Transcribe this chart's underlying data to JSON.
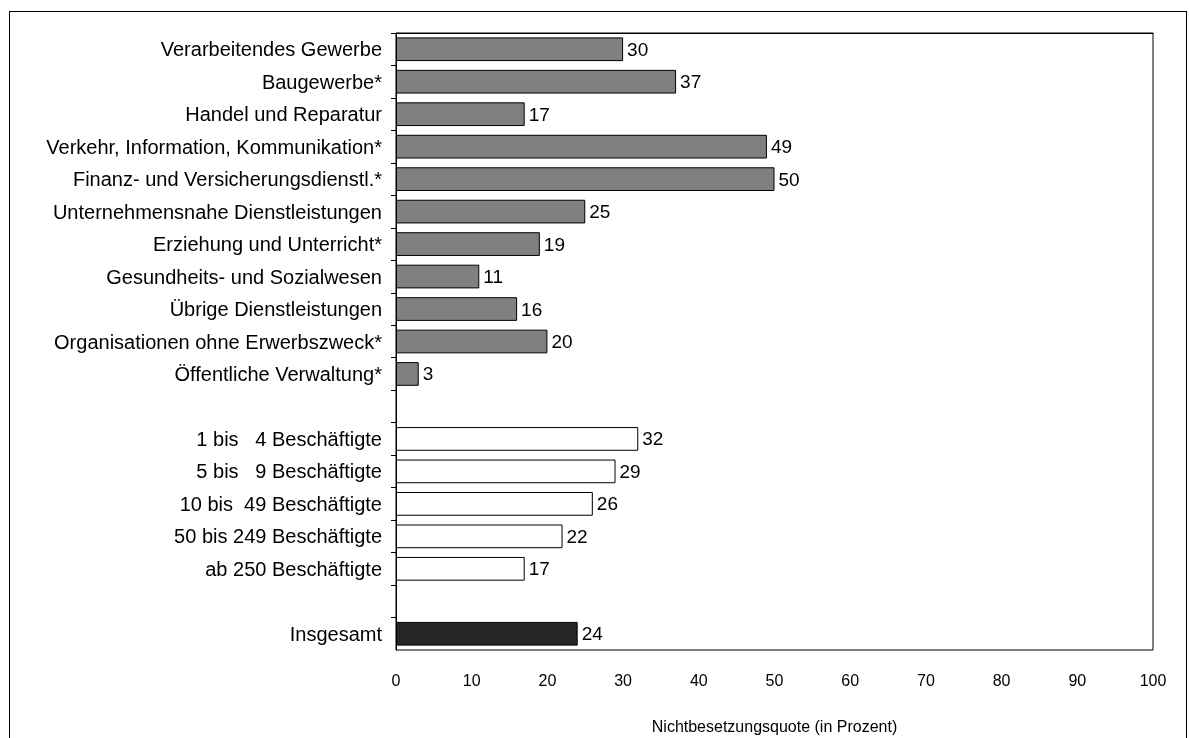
{
  "chart_data": {
    "type": "bar",
    "orientation": "horizontal",
    "categories": [
      "Verarbeitendes Gewerbe",
      "Baugewerbe*",
      "Handel und Reparatur",
      "Verkehr, Information, Kommunikation*",
      "Finanz- und Versicherungsdienstl.*",
      "Unternehmensnahe Dienstleistungen",
      "Erziehung und Unterricht*",
      "Gesundheits- und Sozialwesen",
      "Übrige Dienstleistungen",
      "Organisationen ohne Erwerbszweck*",
      "Öffentliche Verwaltung*",
      null,
      "1 bis   4 Beschäftigte",
      "5 bis   9 Beschäftigte",
      "10 bis  49 Beschäftigte",
      "50 bis 249 Beschäftigte",
      "ab 250 Beschäftigte",
      null,
      "Insgesamt"
    ],
    "values": [
      30,
      37,
      17,
      49,
      50,
      25,
      19,
      11,
      16,
      20,
      3,
      null,
      32,
      29,
      26,
      22,
      17,
      null,
      24
    ],
    "colors": [
      "#808080",
      "#808080",
      "#808080",
      "#808080",
      "#808080",
      "#808080",
      "#808080",
      "#808080",
      "#808080",
      "#808080",
      "#808080",
      null,
      "#ffffff",
      "#ffffff",
      "#ffffff",
      "#ffffff",
      "#ffffff",
      null,
      "#262626"
    ],
    "xlabel": "Nichtbesetzungsquote (in Prozent)",
    "xlim": [
      0,
      100
    ],
    "xticks": [
      0,
      10,
      20,
      30,
      40,
      50,
      60,
      70,
      80,
      90,
      100
    ],
    "data_labels": true,
    "grid": false
  }
}
